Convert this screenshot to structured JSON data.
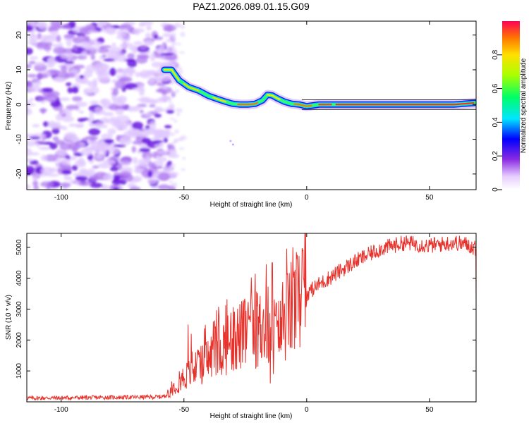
{
  "title": "PAZ1.2026.089.01.15.G09",
  "chart_data": [
    {
      "type": "heatmap",
      "title": "PAZ1.2026.089.01.15.G09",
      "xlabel": "Height of straight line (km)",
      "ylabel": "Frequency (Hz)",
      "xlim": [
        -114,
        69
      ],
      "ylim": [
        -24.5,
        24
      ],
      "xticks": [
        -100,
        -50,
        0,
        50
      ],
      "yticks": [
        -20,
        -10,
        0,
        10,
        20
      ],
      "noise_region_x": [
        -114,
        -56
      ],
      "tone_track": {
        "x": [
          -58,
          -55,
          -52,
          -48,
          -44,
          -40,
          -36,
          -33,
          -30,
          -27,
          -24,
          -21,
          -18,
          -16,
          -14,
          -12,
          -9,
          -6,
          -3,
          0,
          5,
          10,
          20,
          30,
          40,
          50,
          60,
          69
        ],
        "freq": [
          10,
          10,
          7,
          5,
          4,
          2.5,
          1.5,
          0.8,
          0.2,
          0,
          0,
          0.2,
          1.2,
          2.8,
          2.6,
          1.8,
          0.8,
          0.2,
          0,
          -0.5,
          0,
          0,
          0,
          0,
          0,
          0,
          0,
          0.5
        ]
      },
      "colorbar": {
        "label": "Normalized spectral amplitude",
        "range": [
          0,
          1
        ],
        "ticks": [
          0,
          0.2,
          0.4,
          0.6,
          0.8
        ]
      }
    },
    {
      "type": "line",
      "xlabel": "Height of straight line (km)",
      "ylabel": "SNR (10 * v/v)",
      "xlim": [
        -114,
        69
      ],
      "ylim": [
        0,
        5450
      ],
      "xticks": [
        -100,
        -50,
        0,
        50
      ],
      "yticks": [
        1000,
        2000,
        3000,
        4000,
        5000
      ],
      "color": "#e8302a",
      "trend": {
        "x": [
          -114,
          -70,
          -60,
          -57,
          -54,
          -50,
          -46,
          -40,
          -34,
          -28,
          -22,
          -18,
          -15,
          -12,
          -8,
          -4,
          0,
          5,
          10,
          15,
          20,
          25,
          30,
          35,
          40,
          45,
          50,
          55,
          60,
          65,
          69
        ],
        "snr": [
          120,
          150,
          160,
          200,
          500,
          800,
          1000,
          1400,
          1800,
          2100,
          2300,
          2400,
          2500,
          2100,
          2800,
          3200,
          3500,
          3800,
          4050,
          4300,
          4550,
          4750,
          4950,
          5050,
          5150,
          5100,
          5050,
          5100,
          5150,
          5100,
          4950
        ]
      },
      "spikes": [
        {
          "x": -48.3,
          "snr": 2500
        },
        {
          "x": -47.0,
          "snr": 2200
        },
        {
          "x": -38.0,
          "snr": 2600
        },
        {
          "x": -29.5,
          "snr": 2900
        },
        {
          "x": -24.0,
          "snr": 3000
        },
        {
          "x": -16.5,
          "snr": 4450
        },
        {
          "x": -14.0,
          "snr": 4500
        },
        {
          "x": -12.5,
          "snr": 3200
        }
      ],
      "dips": [
        {
          "x": -14.8,
          "snr": 600
        },
        {
          "x": -13.5,
          "snr": 900
        }
      ]
    }
  ]
}
